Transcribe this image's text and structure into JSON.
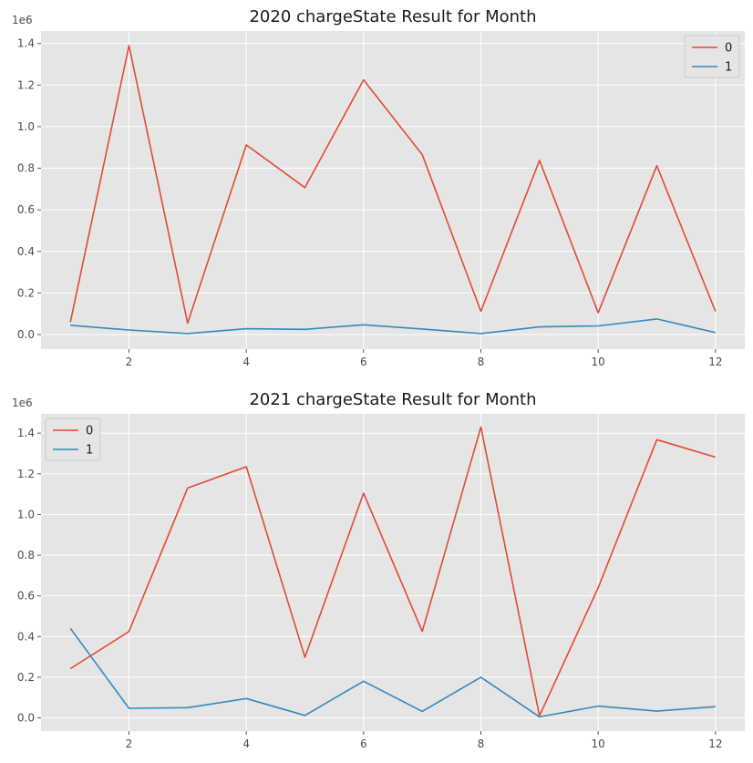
{
  "chart_data": [
    {
      "type": "line",
      "title": "2020 chargeState Result for Month",
      "xlabel": "",
      "ylabel": "",
      "y_offset_label": "1e6",
      "x": [
        1,
        2,
        3,
        4,
        5,
        6,
        7,
        8,
        9,
        10,
        11,
        12
      ],
      "xlim": [
        0.5,
        12.5
      ],
      "ylim": [
        -70000,
        1460000
      ],
      "x_ticks": [
        2,
        4,
        6,
        8,
        10,
        12
      ],
      "y_ticks": [
        0.0,
        0.2,
        0.4,
        0.6,
        0.8,
        1.0,
        1.2,
        1.4
      ],
      "y_tick_labels": [
        "0.0",
        "0.2",
        "0.4",
        "0.6",
        "0.8",
        "1.0",
        "1.2",
        "1.4"
      ],
      "legend_position": "top-right",
      "grid": true,
      "series": [
        {
          "name": "0",
          "color": "#E24A33",
          "values": [
            60000,
            1390000,
            55000,
            912000,
            707000,
            1225000,
            865000,
            112000,
            838000,
            105000,
            812000,
            112000
          ]
        },
        {
          "name": "1",
          "color": "#348ABD",
          "values": [
            45000,
            22000,
            5000,
            28000,
            25000,
            47000,
            27000,
            5000,
            37000,
            42000,
            75000,
            10000
          ]
        }
      ]
    },
    {
      "type": "line",
      "title": "2021 chargeState Result for Month",
      "xlabel": "",
      "ylabel": "",
      "y_offset_label": "1e6",
      "x": [
        1,
        2,
        3,
        4,
        5,
        6,
        7,
        8,
        9,
        10,
        11,
        12
      ],
      "xlim": [
        0.5,
        12.5
      ],
      "ylim": [
        -65000,
        1495000
      ],
      "x_ticks": [
        2,
        4,
        6,
        8,
        10,
        12
      ],
      "y_ticks": [
        0.0,
        0.2,
        0.4,
        0.6,
        0.8,
        1.0,
        1.2,
        1.4
      ],
      "y_tick_labels": [
        "0.0",
        "0.2",
        "0.4",
        "0.6",
        "0.8",
        "1.0",
        "1.2",
        "1.4"
      ],
      "legend_position": "top-left",
      "grid": true,
      "series": [
        {
          "name": "0",
          "color": "#E24A33",
          "values": [
            242000,
            425000,
            1130000,
            1235000,
            298000,
            1105000,
            425000,
            1430000,
            10000,
            640000,
            1368000,
            1282000
          ]
        },
        {
          "name": "1",
          "color": "#348ABD",
          "values": [
            440000,
            47000,
            50000,
            95000,
            12000,
            180000,
            32000,
            200000,
            5000,
            58000,
            33000,
            55000
          ]
        }
      ]
    }
  ]
}
